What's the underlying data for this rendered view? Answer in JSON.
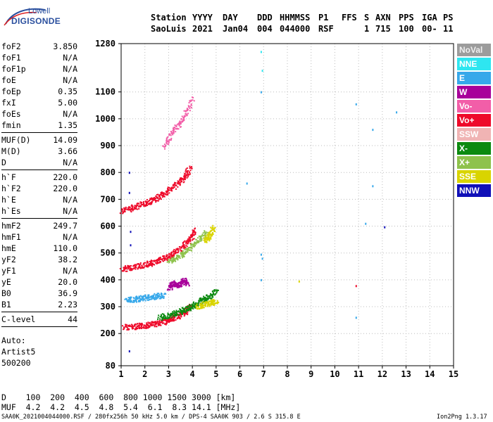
{
  "logo": {
    "line1": "Lowell",
    "line2": "DIGISONDE"
  },
  "header": {
    "row1": [
      {
        "x": 214,
        "text": "Station"
      },
      {
        "x": 273,
        "text": "YYYY"
      },
      {
        "x": 316,
        "text": "DAY"
      },
      {
        "x": 365,
        "text": "DDD"
      },
      {
        "x": 397,
        "text": "HHMMSS"
      },
      {
        "x": 452,
        "text": "P1"
      },
      {
        "x": 485,
        "text": "FFS"
      },
      {
        "x": 517,
        "text": "S"
      },
      {
        "x": 533,
        "text": "AXN"
      },
      {
        "x": 566,
        "text": "PPS"
      },
      {
        "x": 599,
        "text": "IGA"
      },
      {
        "x": 629,
        "text": "PS"
      }
    ],
    "row2": [
      {
        "x": 214,
        "text": "SaoLuis"
      },
      {
        "x": 273,
        "text": "2021"
      },
      {
        "x": 316,
        "text": "Jan04"
      },
      {
        "x": 365,
        "text": "004"
      },
      {
        "x": 397,
        "text": "044000"
      },
      {
        "x": 452,
        "text": "RSF"
      },
      {
        "x": 517,
        "text": "1"
      },
      {
        "x": 533,
        "text": "715"
      },
      {
        "x": 566,
        "text": "100"
      },
      {
        "x": 599,
        "text": "00-"
      },
      {
        "x": 629,
        "text": "11"
      }
    ]
  },
  "params": {
    "group1": [
      {
        "name": "foF2",
        "value": "3.850"
      },
      {
        "name": "foF1",
        "value": "N/A"
      },
      {
        "name": "foF1p",
        "value": "N/A"
      },
      {
        "name": "foE",
        "value": "N/A"
      },
      {
        "name": "foEp",
        "value": "0.35"
      },
      {
        "name": "fxI",
        "value": "5.00"
      },
      {
        "name": "foEs",
        "value": "N/A"
      },
      {
        "name": "fmin",
        "value": "1.35"
      }
    ],
    "group2": [
      {
        "name": "MUF(D)",
        "value": "14.09"
      },
      {
        "name": "M(D)",
        "value": "3.66"
      },
      {
        "name": "D",
        "value": "N/A"
      }
    ],
    "group3": [
      {
        "name": "h`F",
        "value": "220.0"
      },
      {
        "name": "h`F2",
        "value": "220.0"
      },
      {
        "name": "h`E",
        "value": "N/A"
      },
      {
        "name": "h`Es",
        "value": "N/A"
      }
    ],
    "group4": [
      {
        "name": "hmF2",
        "value": "249.7"
      },
      {
        "name": "hmF1",
        "value": "N/A"
      },
      {
        "name": "hmE",
        "value": "110.0"
      },
      {
        "name": "yF2",
        "value": "38.2"
      },
      {
        "name": "yF1",
        "value": "N/A"
      },
      {
        "name": "yE",
        "value": "20.0"
      },
      {
        "name": "B0",
        "value": "36.9"
      },
      {
        "name": "B1",
        "value": "2.23"
      }
    ],
    "group5": [
      {
        "name": "C-level",
        "value": "44"
      }
    ]
  },
  "autoscale": {
    "lines": [
      "Auto:",
      "Artist5",
      "500200"
    ]
  },
  "legend": [
    {
      "label": "NoVal",
      "color": "#9c9c9c"
    },
    {
      "label": "NNE",
      "color": "#2ee6f0"
    },
    {
      "label": "E",
      "color": "#36a8ea"
    },
    {
      "label": "W",
      "color": "#a8009a"
    },
    {
      "label": "Vo-",
      "color": "#f25ea8"
    },
    {
      "label": "Vo+",
      "color": "#ee0a2a"
    },
    {
      "label": "SSW",
      "color": "#f0b4b4"
    },
    {
      "label": "X-",
      "color": "#0c8a10"
    },
    {
      "label": "X+",
      "color": "#8ec24c"
    },
    {
      "label": "SSE",
      "color": "#d9d400"
    },
    {
      "label": "NNW",
      "color": "#1010b8"
    }
  ],
  "muf_table": {
    "row_d": "D    100  200  400  600  800 1000 1500 3000 [km]",
    "row_muf": "MUF  4.2  4.2  4.5  4.8  5.4  6.1  8.3 14.1 [MHz]"
  },
  "footer": {
    "left": "SAA0K_2021004044000.RSF / 280fx256h 50 kHz 5.0 km / DPS-4 SAA0K 903 / 2.6 S 315.8 E",
    "right": "Ion2Png 1.3.17"
  },
  "chart_data": {
    "type": "scatter",
    "xlim": [
      1,
      15
    ],
    "ylim": [
      80,
      1280
    ],
    "x_ticks": [
      1,
      2,
      3,
      4,
      5,
      6,
      7,
      8,
      9,
      10,
      11,
      12,
      13,
      14,
      15
    ],
    "y_ticks": [
      80,
      200,
      300,
      400,
      500,
      600,
      700,
      800,
      900,
      1000,
      1100,
      1280
    ],
    "grid": true,
    "legend_position": "right",
    "traces": [
      {
        "name": "Vo+",
        "x": [
          1.1,
          1.6,
          2.0,
          2.4,
          2.8,
          3.1,
          3.4,
          3.7,
          3.9
        ],
        "y": [
          226,
          228,
          232,
          238,
          246,
          256,
          268,
          285,
          305
        ]
      },
      {
        "name": "Vo+",
        "x": [
          1.0,
          1.5,
          2.0,
          2.4,
          2.8,
          3.2,
          3.6,
          3.9,
          4.1
        ],
        "y": [
          440,
          450,
          458,
          468,
          482,
          500,
          525,
          555,
          590
        ]
      },
      {
        "name": "Vo+",
        "x": [
          1.0,
          1.5,
          2.0,
          2.4,
          2.8,
          3.2,
          3.6,
          3.9
        ],
        "y": [
          655,
          672,
          688,
          702,
          722,
          748,
          780,
          820
        ]
      },
      {
        "name": "X-",
        "x": [
          2.6,
          3.0,
          3.4,
          3.8,
          4.1,
          4.4,
          4.7,
          5.0
        ],
        "y": [
          262,
          270,
          282,
          296,
          310,
          325,
          340,
          360
        ]
      },
      {
        "name": "X+",
        "x": [
          3.0,
          3.4,
          3.8,
          4.2,
          4.6
        ],
        "y": [
          470,
          490,
          515,
          545,
          580
        ]
      },
      {
        "name": "SSE",
        "x": [
          4.2,
          4.5,
          4.8,
          5.0
        ],
        "y": [
          300,
          310,
          318,
          320
        ]
      },
      {
        "name": "SSE",
        "x": [
          4.5,
          4.7,
          4.9
        ],
        "y": [
          550,
          565,
          600
        ]
      },
      {
        "name": "E",
        "x": [
          1.2,
          1.6,
          2.0,
          2.4,
          2.8
        ],
        "y": [
          325,
          330,
          335,
          340,
          345
        ]
      },
      {
        "name": "W",
        "x": [
          3.0,
          3.2,
          3.4,
          3.6,
          3.8
        ],
        "y": [
          370,
          390,
          380,
          400,
          385
        ]
      },
      {
        "name": "Vo-",
        "x": [
          2.8,
          3.2,
          3.6,
          4.0
        ],
        "y": [
          900,
          960,
          1000,
          1080
        ]
      }
    ],
    "points": [
      {
        "series": "NNE",
        "x": 6.9,
        "y": 1250
      },
      {
        "series": "NNE",
        "x": 6.95,
        "y": 1180
      },
      {
        "series": "E",
        "x": 6.9,
        "y": 1100
      },
      {
        "series": "E",
        "x": 10.9,
        "y": 1055
      },
      {
        "series": "E",
        "x": 12.6,
        "y": 1025
      },
      {
        "series": "E",
        "x": 11.6,
        "y": 960
      },
      {
        "series": "E",
        "x": 11.6,
        "y": 750
      },
      {
        "series": "E",
        "x": 6.3,
        "y": 760
      },
      {
        "series": "E",
        "x": 11.3,
        "y": 610
      },
      {
        "series": "NNW",
        "x": 12.1,
        "y": 597
      },
      {
        "series": "E",
        "x": 6.9,
        "y": 495
      },
      {
        "series": "E",
        "x": 6.95,
        "y": 480
      },
      {
        "series": "E",
        "x": 6.9,
        "y": 400
      },
      {
        "series": "SSE",
        "x": 8.5,
        "y": 395
      },
      {
        "series": "Vo+",
        "x": 10.9,
        "y": 378
      },
      {
        "series": "E",
        "x": 10.9,
        "y": 260
      },
      {
        "series": "NNW",
        "x": 1.35,
        "y": 800
      },
      {
        "series": "NNW",
        "x": 1.35,
        "y": 725
      },
      {
        "series": "NNW",
        "x": 1.35,
        "y": 135
      },
      {
        "series": "NNW",
        "x": 1.4,
        "y": 580
      },
      {
        "series": "NNW",
        "x": 1.4,
        "y": 530
      }
    ]
  }
}
